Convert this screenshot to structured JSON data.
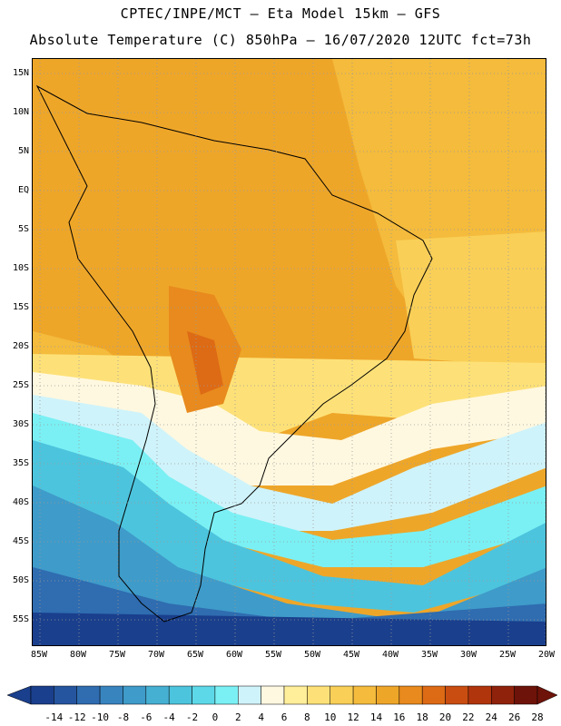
{
  "header": {
    "line1": "CPTEC/INPE/MCT –  Eta Model 15km – GFS",
    "line2": "Absolute Temperature (C) 850hPa – 16/07/2020 12UTC fct=73h"
  },
  "map": {
    "lat_labels": [
      "15N",
      "10N",
      "5N",
      "EQ",
      "5S",
      "10S",
      "15S",
      "20S",
      "25S",
      "30S",
      "35S",
      "40S",
      "45S",
      "50S",
      "55S"
    ],
    "lon_labels": [
      "85W",
      "80W",
      "75W",
      "70W",
      "65W",
      "60W",
      "55W",
      "50W",
      "45W",
      "40W",
      "35W",
      "30W",
      "25W",
      "20W"
    ],
    "grid": "dotted",
    "field": "temperature"
  },
  "colorbar": {
    "labels": [
      "-14",
      "-12",
      "-10",
      "-8",
      "-6",
      "-4",
      "-2",
      "0",
      "2",
      "4",
      "6",
      "8",
      "10",
      "12",
      "14",
      "16",
      "18",
      "20",
      "22",
      "24",
      "26",
      "28"
    ],
    "colors": [
      "#1a3f8c",
      "#25559e",
      "#2f6cb0",
      "#3884bf",
      "#3f9bc9",
      "#46b0d3",
      "#4dc4dd",
      "#5dd8e8",
      "#7af0f4",
      "#cff3fa",
      "#fff8e0",
      "#ffee9a",
      "#fde178",
      "#f9cf57",
      "#f4bb3c",
      "#eea629",
      "#e88a1d",
      "#dd6a15",
      "#c94d10",
      "#b0350d",
      "#8f220b",
      "#6e1309"
    ]
  }
}
